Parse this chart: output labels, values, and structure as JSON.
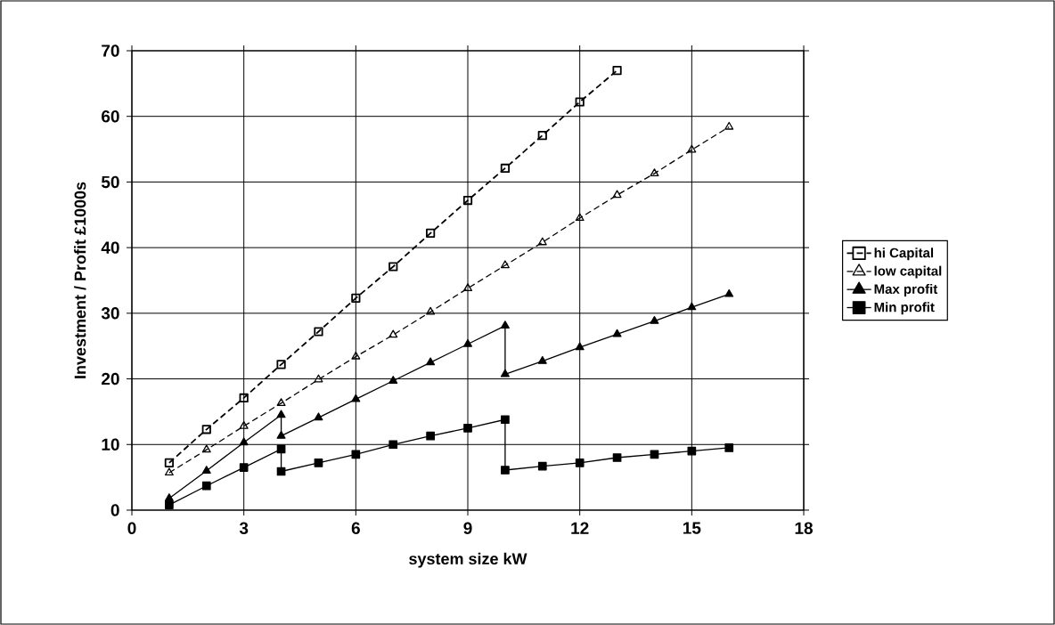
{
  "chart_data": {
    "type": "line",
    "xlabel": "system size kW",
    "ylabel": "Investment / Profit  £1000s",
    "xlim": [
      0,
      18
    ],
    "xticks": [
      0,
      3,
      6,
      9,
      12,
      15,
      18
    ],
    "ylim": [
      0,
      70
    ],
    "yticks": [
      0,
      10,
      20,
      30,
      40,
      50,
      60,
      70
    ],
    "grid": true,
    "legend": "right",
    "series": [
      {
        "name": "hi Capital",
        "color": "#000000",
        "marker": "square",
        "line_style": "dashed",
        "x": [
          1,
          2,
          3,
          4,
          5,
          6,
          7,
          8,
          9,
          10,
          11,
          12,
          13
        ],
        "values": [
          7.2,
          12.3,
          17.1,
          22.2,
          27.2,
          32.3,
          37.1,
          42.2,
          47.2,
          52.1,
          57.1,
          62.2,
          67.0
        ]
      },
      {
        "name": "low capital",
        "color": "#000000",
        "marker": "triangle",
        "line_style": "dashed",
        "x": [
          1,
          2,
          3,
          4,
          5,
          6,
          7,
          8,
          9,
          10,
          11,
          12,
          13,
          14,
          15,
          16
        ],
        "values": [
          5.7,
          9.2,
          12.8,
          16.3,
          19.9,
          23.4,
          26.7,
          30.2,
          33.8,
          37.3,
          40.8,
          44.5,
          48.0,
          51.3,
          54.9,
          58.4
        ]
      },
      {
        "name": "Max profit",
        "color": "#000000",
        "marker": "triangle",
        "line_style": "solid",
        "x": [
          1,
          2,
          3,
          4,
          4,
          5,
          6,
          7,
          8,
          9,
          10,
          10,
          11,
          12,
          13,
          14,
          15,
          16
        ],
        "values": [
          1.8,
          6.0,
          10.3,
          14.5,
          11.3,
          14.1,
          16.9,
          19.7,
          22.5,
          25.3,
          28.1,
          20.7,
          22.7,
          24.8,
          26.8,
          28.8,
          30.9,
          32.9
        ]
      },
      {
        "name": "Min profit",
        "color": "#000000",
        "marker": "square",
        "line_style": "solid",
        "x": [
          1,
          2,
          3,
          4,
          4,
          5,
          6,
          7,
          8,
          9,
          10,
          10,
          11,
          12,
          13,
          14,
          15,
          16
        ],
        "values": [
          0.8,
          3.7,
          6.5,
          9.3,
          5.9,
          7.2,
          8.5,
          10.0,
          11.3,
          12.5,
          13.8,
          6.1,
          6.7,
          7.2,
          8.0,
          8.5,
          9.0,
          9.5
        ]
      }
    ]
  }
}
